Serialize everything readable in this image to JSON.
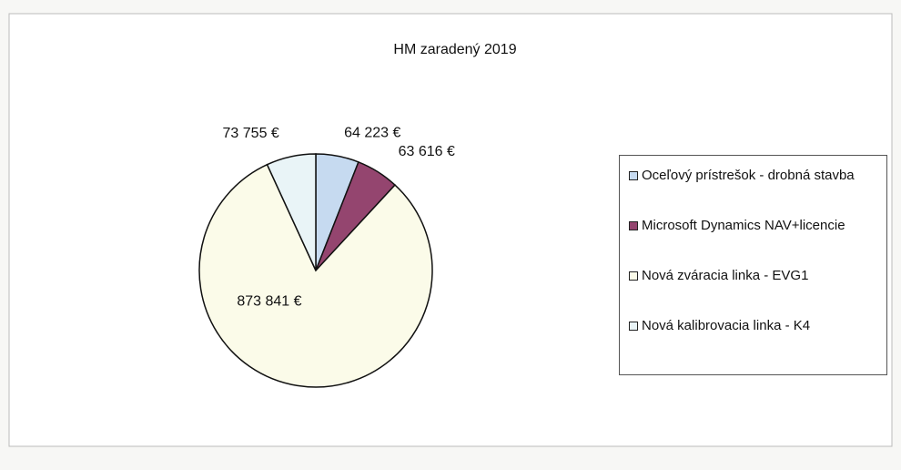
{
  "chart_data": {
    "type": "pie",
    "title": "HM zaradený 2019",
    "categories": [
      "Oceľový prístrešok - drobná stavba",
      "Microsoft Dynamics NAV+licencie",
      "Nová zváracia linka - EVG1",
      "Nová kalibrovacia linka - K4"
    ],
    "values": [
      64223,
      63616,
      873841,
      73755
    ],
    "value_labels": [
      "64 223 €",
      "63 616 €",
      "873 841 €",
      "73 755 €"
    ],
    "colors": [
      "#c6daf0",
      "#94456f",
      "#fbfbe9",
      "#e9f4f7"
    ],
    "legend": "right"
  }
}
